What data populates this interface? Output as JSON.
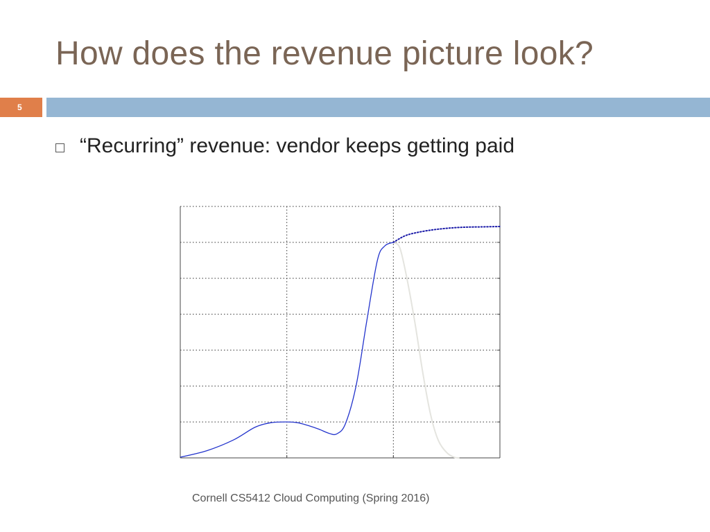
{
  "slide": {
    "title": "How does the revenue picture look?",
    "page_number": "5",
    "bullet": "“Recurring” revenue: vendor keeps getting paid",
    "footer": "Cornell CS5412 Cloud Computing (Spring 2016)",
    "colors": {
      "title": "#7a6555",
      "accent_tab": "#e07f4a",
      "title_bar": "#95b6d3"
    }
  },
  "chart_data": {
    "type": "line",
    "title": "",
    "xlabel": "",
    "ylabel": "",
    "xlim": [
      0,
      3
    ],
    "ylim": [
      0,
      7
    ],
    "grid": true,
    "legend": "none",
    "series": [
      {
        "style": "solid",
        "color": "#2233cc",
        "x": [
          0,
          0.25,
          0.5,
          0.7,
          0.85,
          1.0,
          1.1,
          1.2,
          1.3,
          1.4,
          1.47,
          1.55,
          1.65,
          1.75,
          1.85,
          1.92,
          2.0
        ],
        "y": [
          0.02,
          0.2,
          0.5,
          0.85,
          0.98,
          1.0,
          0.98,
          0.9,
          0.8,
          0.68,
          0.67,
          0.95,
          2.0,
          3.8,
          5.5,
          5.9,
          6.0
        ]
      },
      {
        "style": "dotted",
        "color": "#1a1aa8",
        "x": [
          2.0,
          2.1,
          2.2,
          2.35,
          2.5,
          2.65,
          2.8,
          3.0
        ],
        "y": [
          6.0,
          6.17,
          6.26,
          6.34,
          6.39,
          6.42,
          6.43,
          6.44
        ]
      },
      {
        "style": "solid",
        "color": "#e4e4df",
        "x": [
          2.0,
          2.06,
          2.12,
          2.2,
          2.28,
          2.35,
          2.42,
          2.5,
          2.57,
          2.62
        ],
        "y": [
          6.0,
          5.85,
          5.1,
          3.8,
          2.3,
          1.2,
          0.5,
          0.15,
          0.02,
          0.0
        ]
      }
    ]
  }
}
